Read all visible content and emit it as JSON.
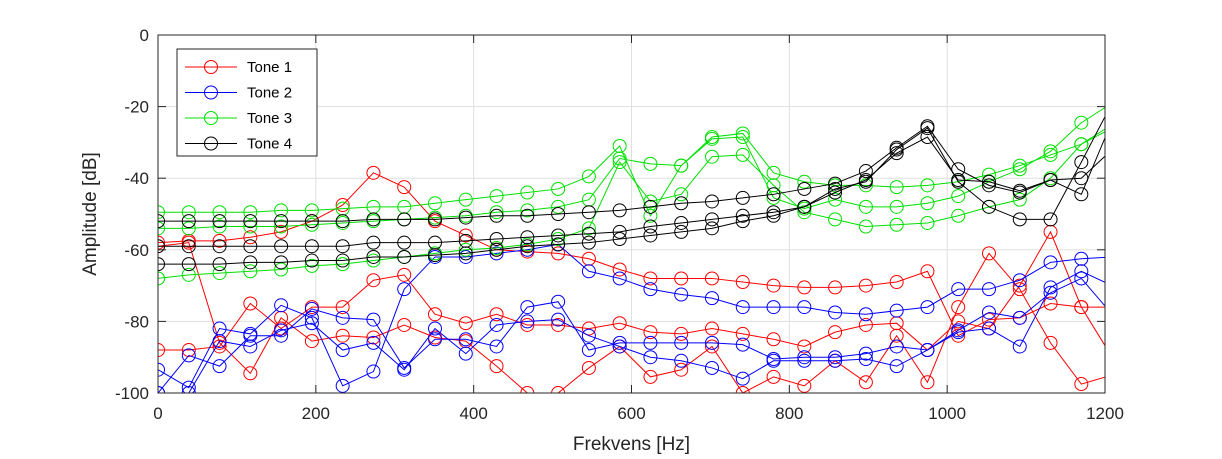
{
  "chart_data": {
    "type": "line",
    "title": "",
    "xlabel": "Frekvens [Hz]",
    "ylabel": "Amplitude [dB]",
    "xlim": [
      0,
      1200
    ],
    "ylim": [
      -100,
      0
    ],
    "xticks": [
      0,
      200,
      400,
      600,
      800,
      1000,
      1200
    ],
    "yticks": [
      0,
      -20,
      -40,
      -60,
      -80,
      -100
    ],
    "xtick_labels": [
      "0",
      "200",
      "400",
      "600",
      "800",
      "1000",
      "1200"
    ],
    "ytick_labels": [
      "0",
      "-20",
      "-40",
      "-60",
      "-80",
      "-100"
    ],
    "grid": true,
    "legend_position": "top-left",
    "x": [
      0,
      39,
      78,
      117,
      156,
      195,
      234,
      273,
      312,
      351,
      390,
      429,
      468,
      507,
      546,
      585,
      624,
      663,
      702,
      741,
      780,
      819,
      858,
      897,
      936,
      975,
      1014,
      1053,
      1092,
      1131,
      1170,
      1209
    ],
    "series": [
      {
        "name": "Tone 1",
        "color": "#ff0000",
        "lines": [
          [
            -58,
            -57.5,
            -57.5,
            -56.5,
            -55,
            -52,
            -47.5,
            -38.5,
            -42.5,
            -52,
            -56,
            -60,
            -60.5,
            -61,
            -62.5,
            -65.5,
            -68,
            -68,
            -68,
            -69,
            -70,
            -70.5,
            -70.5,
            -70,
            -69,
            -66,
            -84,
            -79.5,
            -79,
            -75,
            -76,
            -90
          ],
          [
            -88,
            -88,
            -87,
            -75,
            -82,
            -76,
            -76,
            -68.5,
            -67,
            -78,
            -80.5,
            -78,
            -81,
            -81,
            -82,
            -80.5,
            -83,
            -83.5,
            -82,
            -83.5,
            -85,
            -87,
            -83,
            -81,
            -80.5,
            -88,
            -80,
            -82,
            -70,
            -55,
            -76,
            -76
          ],
          [
            -59,
            -58,
            -86,
            -94.5,
            -79,
            -85.5,
            -84,
            -84.5,
            -81,
            -84.5,
            -85.5,
            -92.5,
            -100,
            -100,
            -93,
            -87,
            -95.5,
            -93.5,
            -87,
            -100,
            -95.5,
            -98,
            -91,
            -97,
            -84,
            -97,
            -76,
            -61,
            -71,
            -86,
            -97.5,
            -95
          ]
        ]
      },
      {
        "name": "Tone 2",
        "color": "#0000ff",
        "lines": [
          [
            -93.5,
            -98.5,
            -82,
            -83.5,
            -75.5,
            -79,
            -98,
            -94,
            -71,
            -62,
            -62,
            -61,
            -60,
            -58.5,
            -66,
            -68,
            -71,
            -72.5,
            -73.5,
            -76,
            -76,
            -76,
            -77.5,
            -78,
            -77,
            -76,
            -71,
            -71,
            -68.5,
            -63.5,
            -62.5,
            -62
          ],
          [
            -100,
            -89.5,
            -92.5,
            -84,
            -84,
            -76.5,
            -79,
            -79.5,
            -93,
            -85,
            -85,
            -87,
            -76,
            -74.5,
            -88,
            -86,
            -86,
            -86,
            -86,
            -86.5,
            -90.5,
            -90,
            -90,
            -89,
            -87,
            -88,
            -83,
            -82,
            -87,
            -70.5,
            -66,
            -70
          ],
          [
            -100,
            -100,
            -85.5,
            -87,
            -82.5,
            -80.5,
            -88,
            -86,
            -93.5,
            -82,
            -89,
            -81,
            -80,
            -79.5,
            -84,
            -87,
            -90,
            -91,
            -93,
            -96,
            -91,
            -91,
            -91,
            -90.5,
            -92.5,
            -88,
            -82.5,
            -77.5,
            -79,
            -72,
            -68,
            -78
          ]
        ]
      },
      {
        "name": "Tone 3",
        "color": "#00e000",
        "lines": [
          [
            -49.5,
            -49.5,
            -49.5,
            -49.5,
            -49,
            -49,
            -48.5,
            -48,
            -48,
            -47,
            -46,
            -45,
            -44,
            -43,
            -39.5,
            -31,
            -50.5,
            -36.5,
            -28.5,
            -27.5,
            -38.5,
            -41,
            -42,
            -42,
            -42.5,
            -42,
            -41,
            -39,
            -36.5,
            -33.5,
            -30.5,
            -26
          ],
          [
            -54,
            -54,
            -53.5,
            -53.5,
            -53.5,
            -53,
            -52.5,
            -52,
            -51.5,
            -51,
            -50.5,
            -49.5,
            -49,
            -48,
            -46,
            -34.5,
            -36,
            -36.5,
            -29,
            -28.5,
            -45.5,
            -48.5,
            -46,
            -48,
            -48,
            -47,
            -45,
            -41,
            -37.5,
            -32.5,
            -24.5,
            -19
          ],
          [
            -68,
            -67,
            -66.5,
            -66,
            -65.5,
            -64.5,
            -64,
            -63,
            -62,
            -61,
            -60,
            -59.5,
            -58.5,
            -57,
            -54,
            -35.5,
            -46.5,
            -44.5,
            -34,
            -33.5,
            -42,
            -49.5,
            -51.5,
            -53.5,
            -53,
            -52.5,
            -50.5,
            -48,
            -46,
            -40,
            -30.5,
            -25
          ]
        ]
      },
      {
        "name": "Tone 4",
        "color": "#000000",
        "lines": [
          [
            -52,
            -52,
            -52,
            -52,
            -52,
            -52,
            -52,
            -51.5,
            -51.5,
            -51.5,
            -51,
            -50.5,
            -50.5,
            -50,
            -49.5,
            -49,
            -48,
            -47,
            -46.5,
            -45.5,
            -44.5,
            -43,
            -41.5,
            -38,
            -31.5,
            -25.5,
            -37.5,
            -42,
            -44,
            -40.5,
            -40,
            -32
          ],
          [
            -59,
            -59,
            -59,
            -59,
            -59,
            -59,
            -59,
            -58,
            -58,
            -58,
            -57.5,
            -57,
            -56.5,
            -56,
            -55.5,
            -55,
            -53.5,
            -52.5,
            -51.5,
            -50.5,
            -49.5,
            -48,
            -43,
            -41,
            -32,
            -26,
            -41,
            -48,
            -51.5,
            -51.5,
            -35.5,
            -19
          ],
          [
            -64,
            -64,
            -64,
            -63.5,
            -63.5,
            -63,
            -63,
            -62,
            -62,
            -61.5,
            -61,
            -60,
            -59,
            -58.5,
            -58,
            -57,
            -56,
            -55,
            -54,
            -52,
            -50.5,
            -48,
            -44,
            -40.5,
            -33,
            -28.5,
            -40.5,
            -41,
            -43.5,
            -40.5,
            -44.5,
            -24
          ]
        ]
      }
    ]
  }
}
